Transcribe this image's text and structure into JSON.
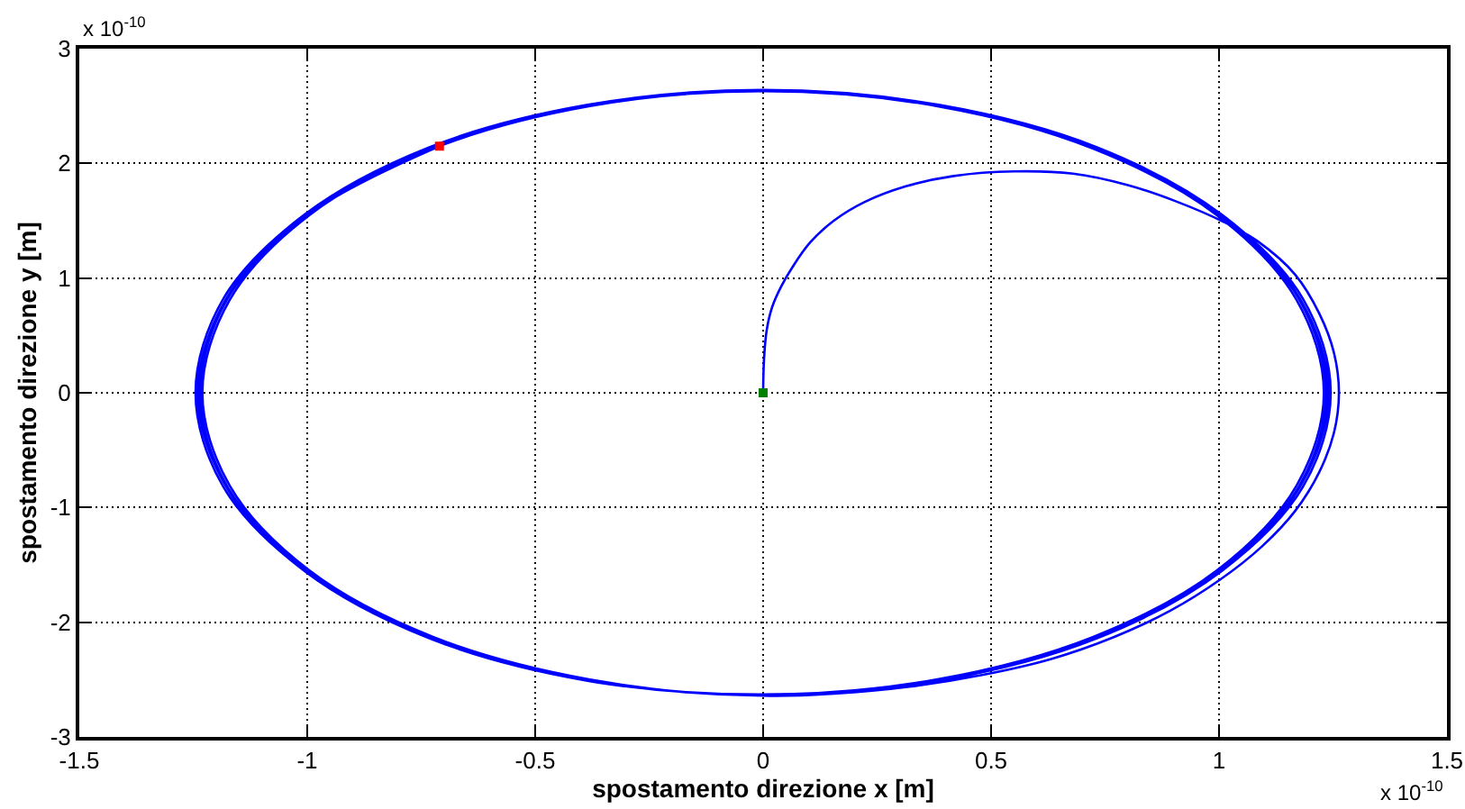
{
  "chart_data": {
    "type": "line",
    "xlabel": "spostamento direzione x [m]",
    "ylabel": "spostamento direzione y [m]",
    "annotations": [
      "x 10$^{-10}$",
      "x 10$^{-10}$"
    ],
    "xlim": [
      -1.5,
      1.5
    ],
    "ylim": [
      -3,
      3
    ],
    "xticks": [
      -1.5,
      -1,
      -0.5,
      0,
      0.5,
      1,
      1.5
    ],
    "yticks": [
      -3,
      -2,
      -1,
      0,
      1,
      2,
      3
    ],
    "grid": true,
    "series": [
      {
        "color": "#0000ff",
        "x": [
          0,
          0.002,
          0.008,
          0.02,
          0.04,
          0.065,
          0.103,
          0.155,
          0.221,
          0.313,
          0.418,
          0.55,
          0.68,
          0.8,
          0.905,
          1.01,
          1.085,
          1.167,
          1.22,
          1.252,
          1.263,
          1.252,
          1.22,
          1.167,
          1.094,
          1.002,
          0.893,
          0.769,
          0.632,
          0.48,
          0.325,
          0.163,
          0,
          -0.385,
          -0.732,
          -1.007,
          -1.184,
          -1.245,
          -1.184,
          -1.007,
          -0.732,
          -0.385,
          0,
          0.385,
          0.732,
          1.007,
          1.184,
          1.245,
          1.184,
          1.007,
          0.732,
          0.385,
          0,
          -0.383,
          -0.729,
          -1.003,
          -1.179,
          -1.24,
          -1.179,
          -1.003,
          -0.729,
          -0.383,
          0,
          0.383,
          0.729,
          1.003,
          1.179,
          1.24,
          1.179,
          1.003,
          0.729,
          0.383,
          0,
          -0.382,
          -0.726,
          -0.999,
          -1.175,
          -1.235,
          -1.175,
          -0.999,
          -0.726,
          -0.382,
          0,
          0.382,
          0.726,
          0.999,
          1.175,
          1.235,
          1.175,
          0.999,
          0.726,
          0.382,
          0,
          -0.38,
          -0.723,
          -0.995,
          -1.17,
          -1.23,
          -1.17,
          -0.995,
          -0.723,
          -0.38,
          0,
          0.38,
          0.723,
          0.995,
          1.17,
          1.23,
          1.17,
          0.995,
          0.723,
          0.38,
          0,
          -0.382,
          -0.726,
          -0.999,
          -1.175,
          -1.235,
          -1.175,
          -0.999,
          -0.71
        ],
        "values": [
          0,
          0.3,
          0.55,
          0.75,
          0.93,
          1.1,
          1.31,
          1.5,
          1.66,
          1.8,
          1.89,
          1.93,
          1.91,
          1.81,
          1.67,
          1.49,
          1.32,
          1.03,
          0.69,
          0.35,
          0,
          -0.35,
          -0.69,
          -1.03,
          -1.34,
          -1.63,
          -1.9,
          -2.13,
          -2.32,
          -2.46,
          -2.56,
          -2.62,
          -2.64,
          -2.51,
          -2.14,
          -1.55,
          -0.82,
          0,
          0.82,
          1.55,
          2.14,
          2.51,
          2.64,
          2.51,
          2.14,
          1.55,
          0.82,
          0,
          -0.82,
          -1.55,
          -2.14,
          -2.51,
          -2.64,
          -2.5,
          -2.13,
          -1.55,
          -0.81,
          0,
          0.81,
          1.55,
          2.13,
          2.5,
          2.63,
          2.5,
          2.13,
          1.55,
          0.81,
          0,
          -0.81,
          -1.55,
          -2.13,
          -2.5,
          -2.63,
          -2.51,
          -2.14,
          -1.55,
          -0.82,
          0,
          0.82,
          1.55,
          2.14,
          2.51,
          2.64,
          2.51,
          2.14,
          1.55,
          0.82,
          0,
          -0.82,
          -1.55,
          -2.14,
          -2.51,
          -2.64,
          -2.5,
          -2.13,
          -1.55,
          -0.81,
          0,
          0.81,
          1.55,
          2.13,
          2.5,
          2.63,
          2.5,
          2.13,
          1.55,
          0.81,
          0,
          -0.81,
          -1.55,
          -2.13,
          -2.5,
          -2.63,
          -2.51,
          -2.14,
          -1.55,
          -0.82,
          0,
          0.82,
          1.55,
          2.15
        ]
      },
      {
        "type": "scatter",
        "color": "#ff0000",
        "marker": "square",
        "x": [
          -0.71
        ],
        "values": [
          2.15
        ]
      },
      {
        "type": "scatter",
        "color": "#008000",
        "marker": "square",
        "x": [
          0
        ],
        "values": [
          0
        ]
      }
    ]
  }
}
